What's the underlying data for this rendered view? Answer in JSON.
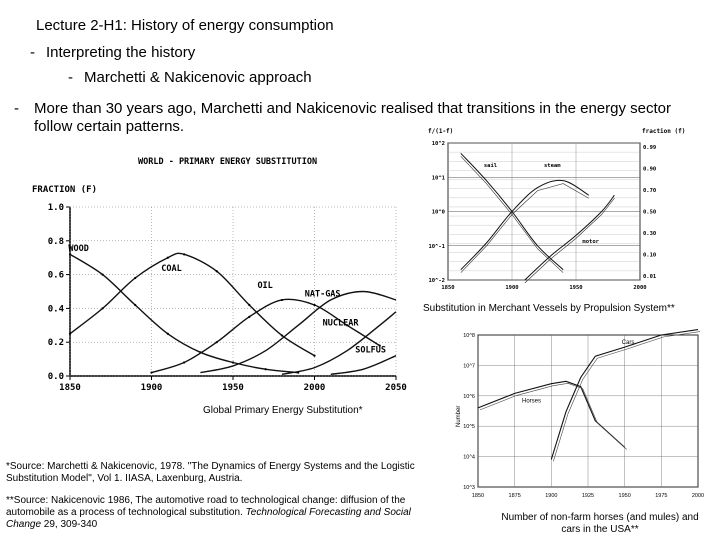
{
  "slide": {
    "title_bold": "Lecture 2-H1",
    "title_rest": ": History of energy consumption",
    "sub1_dash": "-",
    "sub1": "Interpreting the history",
    "sub2_dash": "-",
    "sub2": "Marchetti & Nakicenovic approach",
    "bullet_dash": "-",
    "bullet": "More than 30 years ago, Marchetti and Nakicenovic realised that transitions in the energy sector follow certain patterns."
  },
  "captions": {
    "global": "Global Primary Energy Substitution*",
    "merchant": "Substitution in Merchant Vessels by Propulsion System**",
    "usa": "Number of non-farm horses (and mules) and cars in the USA**"
  },
  "sources": {
    "source1": "*Source: Marchetti & Nakicenovic, 1978. \"The Dynamics of Energy Systems and the Logistic Substitution Model\", Vol 1. IIASA, Laxenburg, Austria.",
    "source2_a": "**Source: Nakicenovic 1986, The automotive road to technological change: diffusion of the automobile as a process of technological substitution. ",
    "source2_journal": "Technological Forecasting and Social Change",
    "source2_b": " 29, 309-340"
  },
  "chart_data": [
    {
      "type": "line",
      "title": "WORLD - PRIMARY ENERGY SUBSTITUTION",
      "ylabel": "FRACTION (F)",
      "xlabel": "",
      "xlim": [
        1850,
        2050
      ],
      "ylim": [
        0,
        1
      ],
      "x_ticks": [
        "1850",
        "1900",
        "1950",
        "2000",
        "2050"
      ],
      "y_ticks": [
        "0.0",
        "0.2",
        "0.4",
        "0.6",
        "0.8",
        "1.0"
      ],
      "series": [
        {
          "name": "WOOD",
          "x": [
            1850,
            1870,
            1890,
            1910,
            1930,
            1950,
            1970,
            1990
          ],
          "values": [
            0.72,
            0.6,
            0.42,
            0.25,
            0.14,
            0.08,
            0.04,
            0.02
          ]
        },
        {
          "name": "COAL",
          "x": [
            1850,
            1870,
            1890,
            1910,
            1920,
            1940,
            1960,
            1980,
            2000
          ],
          "values": [
            0.25,
            0.4,
            0.58,
            0.7,
            0.72,
            0.62,
            0.42,
            0.24,
            0.12
          ]
        },
        {
          "name": "OIL",
          "x": [
            1900,
            1920,
            1940,
            1960,
            1980,
            2000,
            2020,
            2040
          ],
          "values": [
            0.02,
            0.08,
            0.2,
            0.35,
            0.45,
            0.42,
            0.3,
            0.18
          ]
        },
        {
          "name": "NAT-GAS",
          "x": [
            1930,
            1950,
            1970,
            1990,
            2010,
            2030,
            2050
          ],
          "values": [
            0.02,
            0.06,
            0.15,
            0.3,
            0.45,
            0.5,
            0.45
          ]
        },
        {
          "name": "NUCLEAR",
          "x": [
            1980,
            2000,
            2020,
            2040,
            2050
          ],
          "values": [
            0.01,
            0.05,
            0.15,
            0.3,
            0.38
          ]
        },
        {
          "name": "SOLFUS",
          "x": [
            2010,
            2030,
            2050
          ],
          "values": [
            0.01,
            0.04,
            0.12
          ]
        }
      ]
    },
    {
      "type": "line",
      "title": "Substitution in Merchant Vessels by Propulsion System",
      "ylabel": "f/(1-f)",
      "y2label": "fraction (f)",
      "x_ticks": [
        "1850",
        "1900",
        "1950",
        "2000"
      ],
      "y_ticks": [
        "10^2",
        "10^1",
        "10^0",
        "10^-1",
        "10^-2"
      ],
      "y2_ticks": [
        "0.99",
        "0.90",
        "0.70",
        "0.50",
        "0.30",
        "0.10",
        "0.01"
      ],
      "series": [
        {
          "name": "sail",
          "x": [
            1860,
            1880,
            1900,
            1920,
            1940
          ],
          "values": [
            50,
            8,
            1,
            0.1,
            0.02
          ]
        },
        {
          "name": "steam",
          "x": [
            1860,
            1880,
            1900,
            1920,
            1940,
            1960
          ],
          "values": [
            0.02,
            0.12,
            1,
            5,
            8,
            3
          ]
        },
        {
          "name": "motor",
          "x": [
            1910,
            1930,
            1950,
            1970,
            1980
          ],
          "values": [
            0.01,
            0.05,
            0.2,
            1,
            3
          ]
        }
      ]
    },
    {
      "type": "line",
      "title": "Number of non-farm horses (and mules) and cars in the USA",
      "ylabel": "Number",
      "x_ticks": [
        "1850",
        "1875",
        "1900",
        "1925",
        "1950",
        "1975",
        "2000"
      ],
      "y_ticks": [
        "10^8",
        "10^7",
        "10^6",
        "10^5",
        "10^4",
        "10^3"
      ],
      "series": [
        {
          "name": "Horses",
          "x": [
            1850,
            1875,
            1900,
            1910,
            1920,
            1930,
            1950
          ],
          "values": [
            400000,
            1200000,
            2500000,
            3000000,
            2000000,
            150000,
            20000
          ]
        },
        {
          "name": "Cars",
          "x": [
            1900,
            1910,
            1920,
            1930,
            1950,
            1975,
            2000
          ],
          "values": [
            8000,
            300000,
            4000000,
            20000000,
            40000000,
            100000000,
            150000000
          ]
        }
      ]
    }
  ]
}
